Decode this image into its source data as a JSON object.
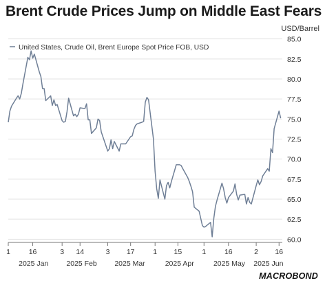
{
  "chart_data": {
    "type": "line",
    "title": "Brent Crude Prices Jump on Middle East Fears",
    "ylabel": "USD/Barrel",
    "ylim": [
      59.6,
      85.4
    ],
    "yticks": [
      60.0,
      62.5,
      65.0,
      67.5,
      70.0,
      72.5,
      75.0,
      77.5,
      80.0,
      82.5,
      85.0
    ],
    "ytick_labels": [
      "60.0",
      "62.5",
      "65.0",
      "67.5",
      "70.0",
      "72.5",
      "75.0",
      "77.5",
      "80.0",
      "82.5",
      "85.0"
    ],
    "grid": true,
    "legend_position": "top-left",
    "xlim": [
      "2025-01-01",
      "2025-06-18"
    ],
    "xticks": [
      {
        "date": "2025-01-01",
        "label": "1"
      },
      {
        "date": "2025-01-16",
        "label": "16"
      },
      {
        "date": "2025-02-03",
        "label": "3"
      },
      {
        "date": "2025-02-14",
        "label": "14"
      },
      {
        "date": "2025-03-03",
        "label": "3"
      },
      {
        "date": "2025-03-17",
        "label": "17"
      },
      {
        "date": "2025-04-01",
        "label": "1"
      },
      {
        "date": "2025-04-15",
        "label": "15"
      },
      {
        "date": "2025-05-01",
        "label": "1"
      },
      {
        "date": "2025-05-16",
        "label": "16"
      },
      {
        "date": "2025-06-02",
        "label": "2"
      },
      {
        "date": "2025-06-16",
        "label": "16"
      }
    ],
    "month_labels": [
      {
        "label": "2025 Jan",
        "from": "2025-01-01",
        "to": "2025-02-01"
      },
      {
        "label": "2025 Feb",
        "from": "2025-02-01",
        "to": "2025-03-01"
      },
      {
        "label": "2025 Mar",
        "from": "2025-03-01",
        "to": "2025-04-01"
      },
      {
        "label": "2025 Apr",
        "from": "2025-04-01",
        "to": "2025-05-01"
      },
      {
        "label": "2025 May",
        "from": "2025-05-01",
        "to": "2025-06-01"
      },
      {
        "label": "2025 Jun",
        "from": "2025-06-01",
        "to": "2025-06-18"
      }
    ],
    "series": [
      {
        "name": "United States, Crude Oil, Brent Europe Spot Price FOB, USD",
        "color": "#6f7f96",
        "points": [
          [
            "2025-01-01",
            74.6
          ],
          [
            "2025-01-02",
            76.0
          ],
          [
            "2025-01-03",
            76.6
          ],
          [
            "2025-01-06",
            77.6
          ],
          [
            "2025-01-07",
            77.9
          ],
          [
            "2025-01-08",
            77.5
          ],
          [
            "2025-01-09",
            78.2
          ],
          [
            "2025-01-10",
            79.4
          ],
          [
            "2025-01-13",
            82.7
          ],
          [
            "2025-01-14",
            82.4
          ],
          [
            "2025-01-15",
            83.5
          ],
          [
            "2025-01-16",
            82.6
          ],
          [
            "2025-01-17",
            83.1
          ],
          [
            "2025-01-20",
            80.9
          ],
          [
            "2025-01-21",
            80.3
          ],
          [
            "2025-01-22",
            78.8
          ],
          [
            "2025-01-23",
            78.8
          ],
          [
            "2025-01-24",
            77.3
          ],
          [
            "2025-01-27",
            77.9
          ],
          [
            "2025-01-28",
            76.7
          ],
          [
            "2025-01-29",
            77.4
          ],
          [
            "2025-01-30",
            76.7
          ],
          [
            "2025-01-31",
            76.8
          ],
          [
            "2025-02-03",
            74.8
          ],
          [
            "2025-02-04",
            74.6
          ],
          [
            "2025-02-05",
            74.7
          ],
          [
            "2025-02-06",
            75.9
          ],
          [
            "2025-02-07",
            77.6
          ],
          [
            "2025-02-10",
            75.4
          ],
          [
            "2025-02-11",
            75.6
          ],
          [
            "2025-02-12",
            75.3
          ],
          [
            "2025-02-13",
            75.6
          ],
          [
            "2025-02-14",
            76.4
          ],
          [
            "2025-02-17",
            76.3
          ],
          [
            "2025-02-18",
            76.9
          ],
          [
            "2025-02-19",
            74.9
          ],
          [
            "2025-02-20",
            74.9
          ],
          [
            "2025-02-21",
            73.2
          ],
          [
            "2025-02-24",
            73.9
          ],
          [
            "2025-02-25",
            75.0
          ],
          [
            "2025-02-26",
            74.8
          ],
          [
            "2025-02-27",
            73.4
          ],
          [
            "2025-02-28",
            72.8
          ],
          [
            "2025-03-03",
            71.0
          ],
          [
            "2025-03-04",
            71.3
          ],
          [
            "2025-03-05",
            72.4
          ],
          [
            "2025-03-06",
            71.3
          ],
          [
            "2025-03-07",
            72.2
          ],
          [
            "2025-03-10",
            71.0
          ],
          [
            "2025-03-11",
            71.9
          ],
          [
            "2025-03-12",
            71.9
          ],
          [
            "2025-03-13",
            71.9
          ],
          [
            "2025-03-14",
            71.9
          ],
          [
            "2025-03-17",
            72.8
          ],
          [
            "2025-03-18",
            72.9
          ],
          [
            "2025-03-19",
            73.7
          ],
          [
            "2025-03-20",
            74.2
          ],
          [
            "2025-03-21",
            74.4
          ],
          [
            "2025-03-24",
            74.6
          ],
          [
            "2025-03-25",
            74.7
          ],
          [
            "2025-03-26",
            77.1
          ],
          [
            "2025-03-27",
            77.7
          ],
          [
            "2025-03-28",
            77.4
          ],
          [
            "2025-03-31",
            72.5
          ],
          [
            "2025-04-01",
            68.5
          ],
          [
            "2025-04-02",
            66.3
          ],
          [
            "2025-04-03",
            65.1
          ],
          [
            "2025-04-04",
            67.4
          ],
          [
            "2025-04-07",
            65.0
          ],
          [
            "2025-04-08",
            66.7
          ],
          [
            "2025-04-09",
            67.1
          ],
          [
            "2025-04-10",
            66.4
          ],
          [
            "2025-04-11",
            67.2
          ],
          [
            "2025-04-14",
            69.3
          ],
          [
            "2025-04-15",
            69.3
          ],
          [
            "2025-04-16",
            69.3
          ],
          [
            "2025-04-17",
            69.2
          ],
          [
            "2025-04-18",
            68.8
          ],
          [
            "2025-04-21",
            67.7
          ],
          [
            "2025-04-22",
            67.2
          ],
          [
            "2025-04-23",
            66.6
          ],
          [
            "2025-04-24",
            65.9
          ],
          [
            "2025-04-25",
            64.0
          ],
          [
            "2025-04-28",
            63.5
          ],
          [
            "2025-04-29",
            62.6
          ],
          [
            "2025-04-30",
            61.7
          ],
          [
            "2025-05-01",
            61.5
          ],
          [
            "2025-05-02",
            61.6
          ],
          [
            "2025-05-05",
            62.1
          ],
          [
            "2025-05-06",
            60.3
          ],
          [
            "2025-05-07",
            62.6
          ],
          [
            "2025-05-08",
            64.1
          ],
          [
            "2025-05-09",
            64.9
          ],
          [
            "2025-05-12",
            67.0
          ],
          [
            "2025-05-13",
            66.3
          ],
          [
            "2025-05-14",
            65.2
          ],
          [
            "2025-05-15",
            64.5
          ],
          [
            "2025-05-16",
            65.2
          ],
          [
            "2025-05-19",
            66.0
          ],
          [
            "2025-05-20",
            66.9
          ],
          [
            "2025-05-21",
            65.6
          ],
          [
            "2025-05-22",
            64.9
          ],
          [
            "2025-05-23",
            65.5
          ],
          [
            "2025-05-26",
            65.6
          ],
          [
            "2025-05-27",
            64.4
          ],
          [
            "2025-05-28",
            65.2
          ],
          [
            "2025-05-29",
            64.6
          ],
          [
            "2025-05-30",
            64.4
          ],
          [
            "2025-06-02",
            66.7
          ],
          [
            "2025-06-03",
            67.4
          ],
          [
            "2025-06-04",
            66.8
          ],
          [
            "2025-06-05",
            67.2
          ],
          [
            "2025-06-06",
            67.9
          ],
          [
            "2025-06-09",
            68.8
          ],
          [
            "2025-06-10",
            68.5
          ],
          [
            "2025-06-11",
            71.3
          ],
          [
            "2025-06-12",
            70.8
          ],
          [
            "2025-06-13",
            73.8
          ],
          [
            "2025-06-16",
            76.0
          ],
          [
            "2025-06-17",
            75.1
          ]
        ]
      }
    ]
  },
  "brand": {
    "name": "MACROBOND"
  }
}
